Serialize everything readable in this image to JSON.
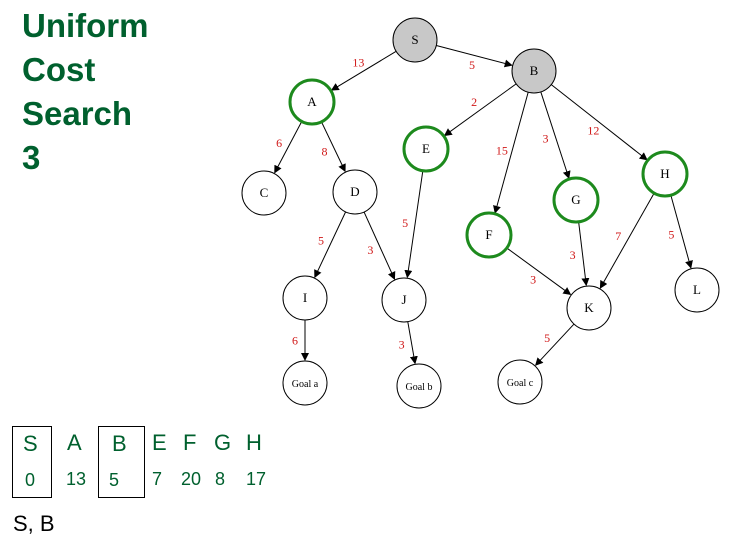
{
  "title": {
    "lines": [
      "Uniform",
      "Cost",
      "Search",
      "3"
    ]
  },
  "colors": {
    "title": "#00602e",
    "expanded_fill": "#c8c8c8",
    "frontier_ring": "#1d8a1d",
    "edge_label": "#d01818"
  },
  "graph": {
    "nodes": [
      {
        "id": "S",
        "label": "S",
        "state": "expanded"
      },
      {
        "id": "B",
        "label": "B",
        "state": "expanded"
      },
      {
        "id": "A",
        "label": "A",
        "state": "frontier"
      },
      {
        "id": "E",
        "label": "E",
        "state": "frontier"
      },
      {
        "id": "F",
        "label": "F",
        "state": "frontier"
      },
      {
        "id": "G",
        "label": "G",
        "state": "frontier"
      },
      {
        "id": "H",
        "label": "H",
        "state": "frontier"
      },
      {
        "id": "C",
        "label": "C",
        "state": "none"
      },
      {
        "id": "D",
        "label": "D",
        "state": "none"
      },
      {
        "id": "I",
        "label": "I",
        "state": "none"
      },
      {
        "id": "J",
        "label": "J",
        "state": "none"
      },
      {
        "id": "K",
        "label": "K",
        "state": "none"
      },
      {
        "id": "L",
        "label": "L",
        "state": "none"
      },
      {
        "id": "GA",
        "label": "Goal a",
        "state": "none"
      },
      {
        "id": "GB",
        "label": "Goal b",
        "state": "none"
      },
      {
        "id": "GC",
        "label": "Goal c",
        "state": "none"
      }
    ],
    "edges": [
      {
        "from": "S",
        "to": "A",
        "cost": "13"
      },
      {
        "from": "S",
        "to": "B",
        "cost": "5"
      },
      {
        "from": "A",
        "to": "C",
        "cost": "6"
      },
      {
        "from": "A",
        "to": "D",
        "cost": "8"
      },
      {
        "from": "B",
        "to": "E",
        "cost": "2"
      },
      {
        "from": "B",
        "to": "F",
        "cost": "15"
      },
      {
        "from": "B",
        "to": "G",
        "cost": "3"
      },
      {
        "from": "B",
        "to": "H",
        "cost": "12"
      },
      {
        "from": "D",
        "to": "I",
        "cost": "5"
      },
      {
        "from": "D",
        "to": "J",
        "cost": "3"
      },
      {
        "from": "E",
        "to": "J",
        "cost": "5"
      },
      {
        "from": "F",
        "to": "K",
        "cost": "3"
      },
      {
        "from": "G",
        "to": "K",
        "cost": "3"
      },
      {
        "from": "H",
        "to": "K",
        "cost": "7"
      },
      {
        "from": "H",
        "to": "L",
        "cost": "5"
      },
      {
        "from": "I",
        "to": "GA",
        "cost": "6"
      },
      {
        "from": "J",
        "to": "GB",
        "cost": "3"
      },
      {
        "from": "K",
        "to": "GC",
        "cost": "5"
      }
    ]
  },
  "frontier_table": [
    {
      "node": "S",
      "cost": "0",
      "boxed": true
    },
    {
      "node": "A",
      "cost": "13",
      "boxed": false
    },
    {
      "node": "B",
      "cost": "5",
      "boxed": true
    },
    {
      "node": "E",
      "cost": "7",
      "boxed": false
    },
    {
      "node": "F",
      "cost": "20",
      "boxed": false
    },
    {
      "node": "G",
      "cost": "8",
      "boxed": false
    },
    {
      "node": "H",
      "cost": "17",
      "boxed": false
    }
  ],
  "explored": "S, B"
}
